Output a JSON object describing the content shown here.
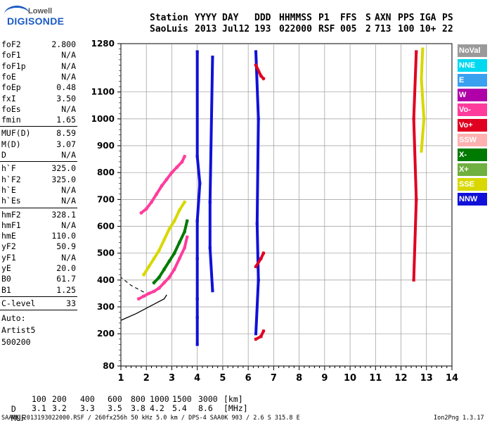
{
  "logo": {
    "line1": "Lowell",
    "line2": "DIGISONDE"
  },
  "header": {
    "row1": [
      "Station",
      "YYYY",
      "DAY",
      "DDD",
      "HHMMSS",
      "P1",
      "FFS",
      "S",
      "AXN",
      "PPS",
      "IGA",
      "PS"
    ],
    "row2": [
      "SaoLuis",
      "2013",
      "Jul12",
      "193",
      "022000",
      "RSF",
      "005",
      "2",
      "713",
      "100",
      "10+",
      "22"
    ]
  },
  "params": [
    {
      "group": 1,
      "name": "foF2",
      "value": "2.800"
    },
    {
      "group": 1,
      "name": "foF1",
      "value": "N/A"
    },
    {
      "group": 1,
      "name": "foF1p",
      "value": "N/A"
    },
    {
      "group": 1,
      "name": "foE",
      "value": "N/A"
    },
    {
      "group": 1,
      "name": "foEp",
      "value": "0.48"
    },
    {
      "group": 1,
      "name": "fxI",
      "value": "3.50"
    },
    {
      "group": 1,
      "name": "foEs",
      "value": "N/A"
    },
    {
      "group": 1,
      "name": "fmin",
      "value": "1.65"
    },
    {
      "group": 2,
      "name": "MUF(D)",
      "value": "8.59"
    },
    {
      "group": 2,
      "name": "M(D)",
      "value": "3.07"
    },
    {
      "group": 2,
      "name": "D",
      "value": "N/A"
    },
    {
      "group": 3,
      "name": "h`F",
      "value": "325.0"
    },
    {
      "group": 3,
      "name": "h`F2",
      "value": "325.0"
    },
    {
      "group": 3,
      "name": "h`E",
      "value": "N/A"
    },
    {
      "group": 3,
      "name": "h`Es",
      "value": "N/A"
    },
    {
      "group": 4,
      "name": "hmF2",
      "value": "328.1"
    },
    {
      "group": 4,
      "name": "hmF1",
      "value": "N/A"
    },
    {
      "group": 4,
      "name": "hmE",
      "value": "110.0"
    },
    {
      "group": 4,
      "name": "yF2",
      "value": "50.9"
    },
    {
      "group": 4,
      "name": "yF1",
      "value": "N/A"
    },
    {
      "group": 4,
      "name": "yE",
      "value": "20.0"
    },
    {
      "group": 4,
      "name": "B0",
      "value": "61.7"
    },
    {
      "group": 4,
      "name": "B1",
      "value": "1.25"
    },
    {
      "group": 5,
      "name": "C-level",
      "value": "33"
    }
  ],
  "auto": [
    "Auto:",
    "Artist5",
    "500200"
  ],
  "legend": [
    {
      "label": "NoVal",
      "color": "#9a9a9a"
    },
    {
      "label": "NNE",
      "color": "#00d8f0"
    },
    {
      "label": "E",
      "color": "#3aa0f0"
    },
    {
      "label": "W",
      "color": "#b000a8"
    },
    {
      "label": "Vo-",
      "color": "#ff3c9c"
    },
    {
      "label": "Vo+",
      "color": "#e00020"
    },
    {
      "label": "SSW",
      "color": "#ffb0b0"
    },
    {
      "label": "X-",
      "color": "#007a00"
    },
    {
      "label": "X+",
      "color": "#70b040"
    },
    {
      "label": "SSE",
      "color": "#d8d800"
    },
    {
      "label": "NNW",
      "color": "#1010d8"
    }
  ],
  "muf_table": {
    "d_label": "D",
    "d_values": [
      "100",
      "200",
      "400",
      "600",
      "800",
      "1000",
      "1500",
      "3000"
    ],
    "d_unit": "[km]",
    "muf_label": "MUF",
    "muf_values": [
      "3.1",
      "3.2",
      "3.3",
      "3.5",
      "3.8",
      "4.2",
      "5.4",
      "8.6"
    ],
    "muf_unit": "[MHz]"
  },
  "footer": {
    "left": "SAA0K_2013193022000.RSF / 260fx256h 50 kHz 5.0 km / DPS-4 SAA0K 903 / 2.6 S 315.8 E",
    "right": "Ion2Png 1.3.17"
  },
  "chart_data": {
    "type": "scatter",
    "xlim": [
      1,
      14
    ],
    "ylim": [
      80,
      1280
    ],
    "x_ticks": [
      "1",
      "2",
      "3",
      "4",
      "5",
      "6",
      "7",
      "8",
      "9",
      "10",
      "11",
      "12",
      "13",
      "14"
    ],
    "y_ticks": [
      "80",
      "200",
      "300",
      "400",
      "500",
      "600",
      "700",
      "800",
      "900",
      "1000",
      "1100",
      "1280"
    ],
    "grid": true,
    "series": [
      {
        "name": "Vo-",
        "traces": [
          [
            [
              1.7,
              330
            ],
            [
              1.9,
              340
            ],
            [
              2.1,
              350
            ],
            [
              2.3,
              358
            ],
            [
              2.5,
              370
            ],
            [
              2.7,
              390
            ],
            [
              2.9,
              410
            ],
            [
              3.1,
              440
            ],
            [
              3.3,
              480
            ],
            [
              3.5,
              520
            ],
            [
              3.6,
              560
            ]
          ],
          [
            [
              1.8,
              650
            ],
            [
              2.0,
              665
            ],
            [
              2.2,
              690
            ],
            [
              2.4,
              720
            ],
            [
              2.6,
              750
            ],
            [
              2.8,
              775
            ],
            [
              3.0,
              800
            ],
            [
              3.2,
              820
            ],
            [
              3.4,
              840
            ],
            [
              3.5,
              860
            ]
          ]
        ]
      },
      {
        "name": "X-",
        "traces": [
          [
            [
              2.3,
              390
            ],
            [
              2.5,
              410
            ],
            [
              2.7,
              440
            ],
            [
              2.9,
              470
            ],
            [
              3.1,
              500
            ],
            [
              3.3,
              540
            ],
            [
              3.5,
              580
            ],
            [
              3.6,
              620
            ]
          ]
        ]
      },
      {
        "name": "SSE",
        "traces": [
          [
            [
              1.9,
              420
            ],
            [
              2.1,
              450
            ],
            [
              2.3,
              480
            ],
            [
              2.5,
              510
            ],
            [
              2.7,
              550
            ],
            [
              2.9,
              590
            ],
            [
              3.1,
              620
            ],
            [
              3.3,
              660
            ],
            [
              3.5,
              690
            ]
          ],
          [
            [
              12.8,
              880
            ],
            [
              12.9,
              1000
            ],
            [
              12.8,
              1150
            ],
            [
              12.85,
              1260
            ]
          ]
        ]
      },
      {
        "name": "NNW",
        "traces": [
          [
            [
              4.0,
              160
            ],
            [
              4.0,
              260
            ],
            [
              4.0,
              330
            ],
            [
              4.0,
              480
            ],
            [
              4.0,
              620
            ],
            [
              4.1,
              760
            ],
            [
              4.0,
              860
            ],
            [
              4.0,
              1250
            ]
          ],
          [
            [
              4.6,
              360
            ],
            [
              4.5,
              520
            ],
            [
              4.5,
              690
            ],
            [
              4.6,
              1230
            ]
          ],
          [
            [
              6.3,
              200
            ],
            [
              6.4,
              400
            ],
            [
              6.35,
              610
            ],
            [
              6.4,
              1000
            ],
            [
              6.3,
              1250
            ]
          ]
        ]
      },
      {
        "name": "Vo+",
        "traces": [
          [
            [
              6.3,
              180
            ],
            [
              6.5,
              190
            ],
            [
              6.6,
              210
            ]
          ],
          [
            [
              6.3,
              450
            ],
            [
              6.5,
              480
            ],
            [
              6.6,
              500
            ]
          ],
          [
            [
              6.3,
              1200
            ],
            [
              6.5,
              1160
            ],
            [
              6.6,
              1150
            ]
          ],
          [
            [
              12.5,
              400
            ],
            [
              12.6,
              700
            ],
            [
              12.5,
              1000
            ],
            [
              12.6,
              1250
            ]
          ]
        ]
      }
    ],
    "profile": {
      "solid": [
        [
          1.0,
          250
        ],
        [
          1.6,
          275
        ],
        [
          2.0,
          295
        ],
        [
          2.4,
          315
        ],
        [
          2.7,
          330
        ],
        [
          2.8,
          345
        ]
      ],
      "dashed": [
        [
          1.9,
          355
        ],
        [
          1.4,
          380
        ],
        [
          1.0,
          410
        ]
      ]
    }
  }
}
